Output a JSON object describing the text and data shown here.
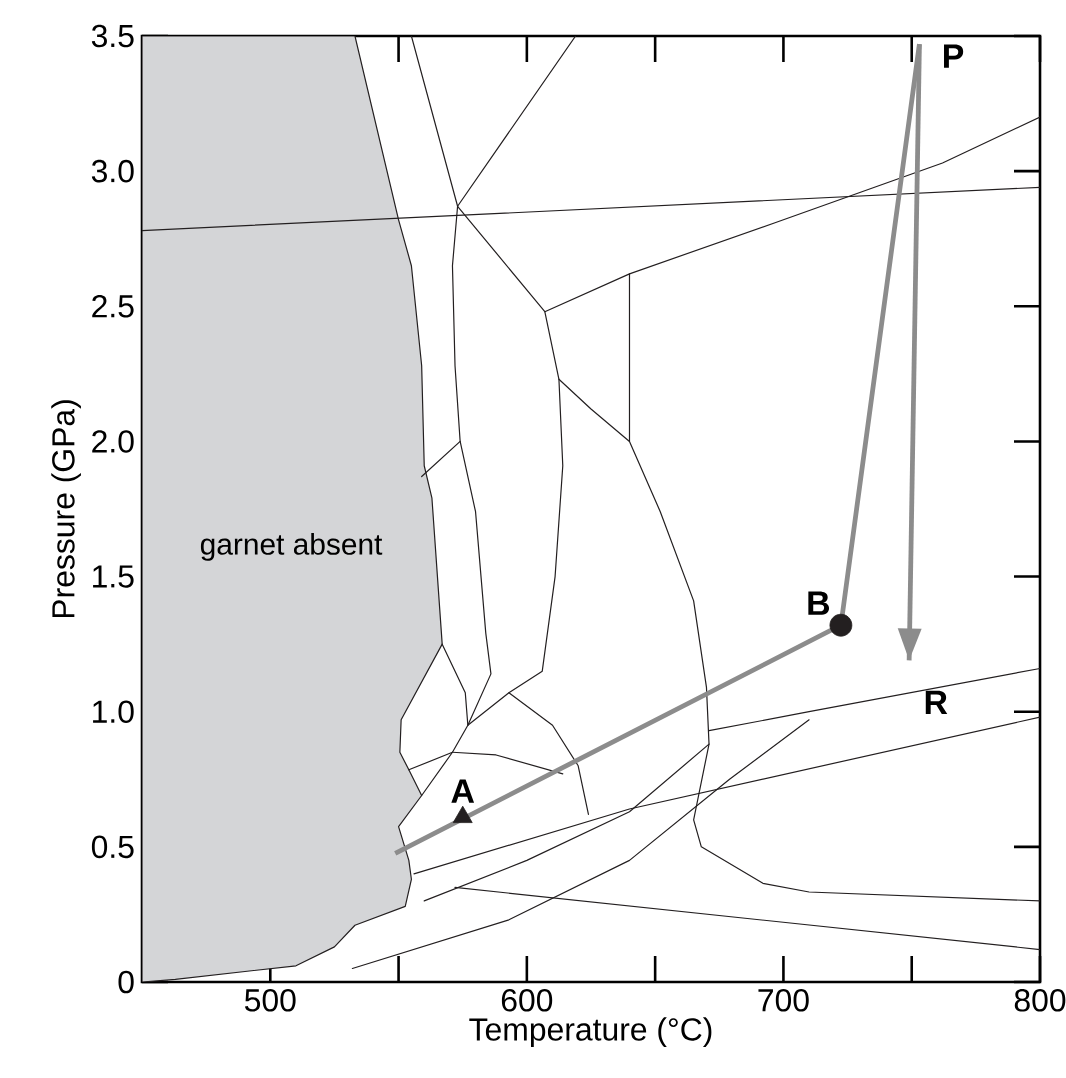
{
  "chart_data": {
    "type": "line",
    "xlabel": "Temperature (°C)",
    "ylabel": "Pressure (GPa)",
    "xlim": [
      450,
      800
    ],
    "ylim": [
      0,
      3.5
    ],
    "xticks": [
      500,
      {
        "value": 550,
        "label": null
      },
      600,
      {
        "value": 650,
        "label": null
      },
      700,
      {
        "value": 750,
        "label": null
      },
      800
    ],
    "yticks": [
      0,
      0.5,
      {
        "value": 1,
        "label": "1.0"
      },
      1.5,
      {
        "value": 2,
        "label": "2.0"
      },
      2.5,
      {
        "value": 3,
        "label": "3.0"
      },
      3.5
    ],
    "series": [
      {
        "type": "area",
        "name": "garnet absent",
        "color": "#d4d5d7",
        "x": [
          450,
          533,
          550,
          555,
          559,
          560,
          563,
          567,
          551,
          550.5,
          554,
          559,
          550,
          554,
          555,
          552.6,
          533,
          525,
          510,
          463,
          450
        ],
        "values": [
          3.5,
          3.5,
          2.82,
          2.65,
          2.28,
          1.91,
          1.79,
          1.25,
          0.97,
          0.85,
          0.785,
          0.69,
          0.575,
          0.45,
          0.38,
          0.28,
          0.21,
          0.13,
          0.06,
          0.01,
          0
        ]
      },
      {
        "color": "#231f20",
        "x": [
          450,
          800
        ],
        "values": [
          2.78,
          2.94
        ]
      },
      {
        "color": "#231f20",
        "x": [
          607,
          640,
          697,
          762,
          800
        ],
        "values": [
          2.48,
          2.62,
          2.81,
          3.03,
          3.2
        ]
      },
      {
        "color": "#231f20",
        "x": [
          555,
          573,
          571,
          572,
          574,
          580,
          584,
          586,
          577,
          571,
          554
        ],
        "values": [
          3.5,
          2.87,
          2.65,
          2.28,
          2.0,
          1.74,
          1.29,
          1.14,
          0.95,
          0.85,
          0.785
        ]
      },
      {
        "color": "#231f20",
        "x": [
          573,
          619
        ],
        "values": [
          2.87,
          3.5
        ]
      },
      {
        "color": "#231f20",
        "x": [
          573,
          607,
          612.5,
          614,
          611,
          606,
          593,
          577
        ],
        "values": [
          2.87,
          2.48,
          2.23,
          1.91,
          1.5,
          1.15,
          1.07,
          0.95
        ]
      },
      {
        "color": "#231f20",
        "x": [
          574,
          559
        ],
        "values": [
          2.0,
          1.87
        ]
      },
      {
        "color": "#231f20",
        "x": [
          612.5,
          625,
          640
        ],
        "values": [
          2.23,
          2.12,
          2.0
        ]
      },
      {
        "color": "#231f20",
        "x": [
          640,
          640,
          652,
          665,
          670,
          671,
          665,
          668,
          692,
          710,
          800
        ],
        "values": [
          2.62,
          2.0,
          1.74,
          1.41,
          1.09,
          0.88,
          0.6,
          0.5,
          0.365,
          0.333,
          0.3
        ]
      },
      {
        "color": "#231f20",
        "x": [
          567,
          576,
          577
        ],
        "values": [
          1.25,
          1.07,
          0.95
        ]
      },
      {
        "color": "#231f20",
        "x": [
          571,
          588,
          614
        ],
        "values": [
          0.85,
          0.84,
          0.77
        ]
      },
      {
        "color": "#231f20",
        "x": [
          593,
          610,
          620,
          624
        ],
        "values": [
          1.07,
          0.95,
          0.8,
          0.62
        ]
      },
      {
        "color": "#231f20",
        "x": [
          559,
          571
        ],
        "values": [
          0.69,
          0.85
        ]
      },
      {
        "color": "#231f20",
        "x": [
          532,
          593,
          640,
          679,
          710
        ],
        "values": [
          0.05,
          0.23,
          0.45,
          0.75,
          0.97
        ]
      },
      {
        "color": "#231f20",
        "x": [
          671,
          710,
          800
        ],
        "values": [
          0.93,
          1.0,
          1.16
        ]
      },
      {
        "color": "#231f20",
        "x": [
          556,
          640,
          800
        ],
        "values": [
          0.4,
          0.64,
          0.98
        ]
      },
      {
        "color": "#231f20",
        "x": [
          560,
          600,
          640,
          671
        ],
        "values": [
          0.3,
          0.45,
          0.63,
          0.88
        ]
      },
      {
        "color": "#231f20",
        "x": [
          572,
          800
        ],
        "values": [
          0.35,
          0.12
        ]
      },
      {
        "color": "#8c8c8c",
        "x": [
          548.7,
          722.4,
          753
        ],
        "values": [
          0.476,
          1.32,
          3.47
        ]
      },
      {
        "color": "#8c8c8c",
        "x": [
          753,
          749
        ],
        "values": [
          3.47,
          1.19
        ]
      },
      {
        "type": "scatter",
        "marker": "triangle",
        "color": "#231f20",
        "x": [
          575
        ],
        "values": [
          0.61
        ]
      },
      {
        "type": "scatter",
        "marker": "circle",
        "color": "#231f20",
        "x": [
          722.4
        ],
        "values": [
          1.32
        ]
      }
    ],
    "annotations": [
      {
        "text": "A",
        "x": 575,
        "y": 0.61
      },
      {
        "text": "B",
        "x": 722.4,
        "y": 1.32
      },
      {
        "text": "P",
        "x": 753,
        "y": 3.47
      },
      "R"
    ]
  }
}
